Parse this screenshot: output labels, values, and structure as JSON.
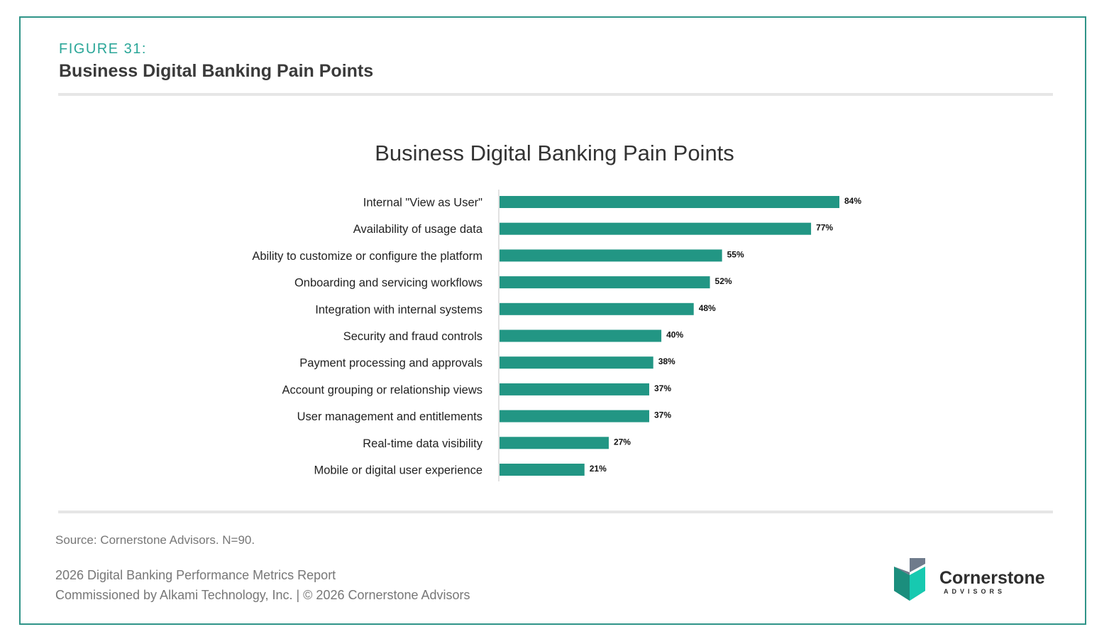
{
  "header": {
    "figure_label": "FIGURE 31:",
    "figure_title": "Business Digital Banking Pain Points"
  },
  "chart_data": {
    "type": "bar",
    "orientation": "horizontal",
    "title": "Business Digital Banking Pain Points",
    "categories": [
      "Internal \"View as User\"",
      "Availability of usage data",
      "Ability to customize or configure the platform",
      "Onboarding and servicing workflows",
      "Integration with internal systems",
      "Security and fraud controls",
      "Payment processing and approvals",
      "Account grouping or relationship views",
      "User management and entitlements",
      "Real-time data visibility",
      "Mobile or digital user experience"
    ],
    "values": [
      84,
      77,
      55,
      52,
      48,
      40,
      38,
      37,
      37,
      27,
      21
    ],
    "value_labels": [
      "84%",
      "77%",
      "55%",
      "52%",
      "48%",
      "40%",
      "38%",
      "37%",
      "37%",
      "27%",
      "21%"
    ],
    "unit": "%",
    "xlim": [
      0,
      100
    ],
    "grid": false,
    "bar_color": "#229684"
  },
  "footer": {
    "source": "Source: Cornerstone Advisors. N=90.",
    "report": "2026 Digital Banking Performance Metrics Report",
    "commission": "Commissioned by Alkami Technology, Inc.  |  © 2026 Cornerstone Advisors"
  },
  "logo": {
    "name": "Cornerstone",
    "sub": "ADVISORS",
    "icon": "cornerstone-cube-logo"
  },
  "colors": {
    "accent": "#2aa698",
    "frame": "#2f9488",
    "bar": "#229684"
  }
}
